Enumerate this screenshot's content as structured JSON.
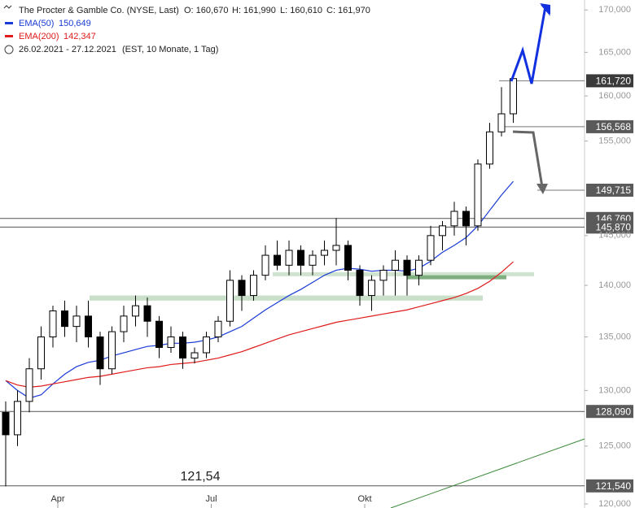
{
  "chart_data": {
    "type": "candlestick",
    "title": "The Procter & Gamble Co. (NYSE, Last)",
    "ohlc_labels": [
      "O: 160,670",
      "H: 161,990",
      "L: 160,610",
      "C: 161,970"
    ],
    "period": "26.02.2021 - 27.12.2021",
    "period_note": "(EST, 10 Monate, 1 Tag)",
    "categories": [
      null,
      null,
      null,
      null,
      "Apr",
      null,
      null,
      null,
      null,
      null,
      null,
      null,
      null,
      null,
      null,
      null,
      null,
      "Jul",
      null,
      null,
      null,
      null,
      null,
      null,
      null,
      null,
      null,
      null,
      null,
      null,
      "Okt",
      null,
      null,
      null,
      null,
      null,
      null,
      null,
      null,
      null,
      null,
      null,
      null,
      null
    ],
    "open": [
      128,
      126,
      129,
      132,
      135,
      137.5,
      136,
      137,
      135,
      132,
      135.5,
      137,
      138,
      136.5,
      134,
      135,
      133,
      133.5,
      135,
      136.5,
      140.5,
      139,
      141,
      143,
      142,
      143.5,
      142,
      143,
      143.5,
      144,
      141.5,
      139,
      140.5,
      141.5,
      142.5,
      141,
      142.5,
      145,
      146,
      147.5,
      146,
      152.5,
      156,
      158
    ],
    "high": [
      129,
      130,
      133,
      136,
      138,
      138.5,
      138,
      138.5,
      135.5,
      136,
      138,
      139,
      138.8,
      137,
      136,
      135.5,
      134,
      135.5,
      137,
      141.5,
      141,
      141.5,
      144,
      144.5,
      144.5,
      144,
      143.5,
      144.5,
      146.8,
      144.5,
      142,
      141,
      142,
      143.5,
      143,
      143,
      146,
      146.5,
      148.5,
      148,
      153,
      157,
      161,
      162
    ],
    "low": [
      121.5,
      125,
      128,
      131,
      134,
      135,
      134.5,
      134,
      130.5,
      131.5,
      134.5,
      136,
      135,
      133,
      133.5,
      132,
      132.5,
      133,
      134.5,
      136,
      137.5,
      138.5,
      140.5,
      141.5,
      141,
      141,
      141,
      142,
      142,
      140.5,
      138,
      137.5,
      139,
      139,
      139,
      140,
      142,
      143.5,
      145,
      144,
      145.5,
      152,
      155.5,
      157
    ],
    "close": [
      126,
      129,
      132,
      135,
      137.5,
      136,
      137,
      135,
      132,
      135.5,
      137,
      138,
      136.5,
      134,
      135,
      133,
      133.5,
      135,
      136.5,
      140.5,
      139,
      141,
      143,
      142,
      143.5,
      142,
      143,
      143.5,
      144,
      141.5,
      139,
      140.5,
      141.5,
      142.5,
      141,
      142.5,
      145,
      146,
      147.5,
      146,
      152.5,
      156,
      158,
      161.97
    ],
    "series": [
      {
        "name": "EMA(50)",
        "color": "#1a3bd6",
        "last_label": "150,649",
        "values": [
          130.9,
          130,
          129.3,
          129.6,
          130.6,
          131.5,
          132.2,
          132.6,
          132.8,
          133.2,
          133.5,
          133.8,
          134.1,
          134.2,
          134.4,
          134.4,
          134.5,
          134.7,
          135,
          135.5,
          136,
          136.8,
          137.6,
          138.3,
          139,
          139.6,
          140.3,
          141,
          141.5,
          141.7,
          141.6,
          141.4,
          141.5,
          141.5,
          141.4,
          141.7,
          142.4,
          143.3,
          144,
          144.8,
          146,
          147.6,
          149.2,
          150.649
        ]
      },
      {
        "name": "EMA(200)",
        "color": "#e01b1b",
        "last_label": "142,347",
        "values": [
          130.9,
          130.5,
          130.3,
          130.4,
          130.6,
          130.8,
          131,
          131.2,
          131.3,
          131.5,
          131.7,
          131.9,
          132.1,
          132.2,
          132.4,
          132.5,
          132.6,
          132.8,
          133,
          133.3,
          133.6,
          134,
          134.4,
          134.8,
          135.2,
          135.5,
          135.8,
          136.1,
          136.4,
          136.6,
          136.8,
          137,
          137.2,
          137.4,
          137.6,
          137.9,
          138.2,
          138.5,
          138.8,
          139.2,
          139.7,
          140.4,
          141.3,
          142.347
        ]
      }
    ],
    "levels": [
      {
        "value": 161.72,
        "label": "161,720"
      },
      {
        "value": 156.568,
        "label": "156,568"
      },
      {
        "value": 149.715,
        "label": "149,715"
      },
      {
        "value": 146.76,
        "label": "146,760"
      },
      {
        "value": 145.87,
        "label": "145,870"
      },
      {
        "value": 128.09,
        "label": "128,090"
      },
      {
        "value": 121.54,
        "label": "121,540"
      }
    ],
    "zones": [
      {
        "low": 140.9,
        "high": 141.3
      },
      {
        "low": 140.6,
        "high": 141.0
      },
      {
        "low": 138.5,
        "high": 139.0
      }
    ],
    "annotation": "121,54",
    "ylim": [
      119.66,
      171.2
    ],
    "log_scale": true,
    "yticks": [
      {
        "value": 120,
        "label": "120,000"
      },
      {
        "value": 125,
        "label": "125,000"
      },
      {
        "value": 130,
        "label": "130,000"
      },
      {
        "value": 135,
        "label": "135,000"
      },
      {
        "value": 140,
        "label": "140,000"
      },
      {
        "value": 145,
        "label": "145,000"
      },
      {
        "value": 155,
        "label": "155,000"
      },
      {
        "value": 160,
        "label": "160,000"
      },
      {
        "value": 165,
        "label": "165,000"
      },
      {
        "value": 170,
        "label": "170,000"
      }
    ]
  }
}
